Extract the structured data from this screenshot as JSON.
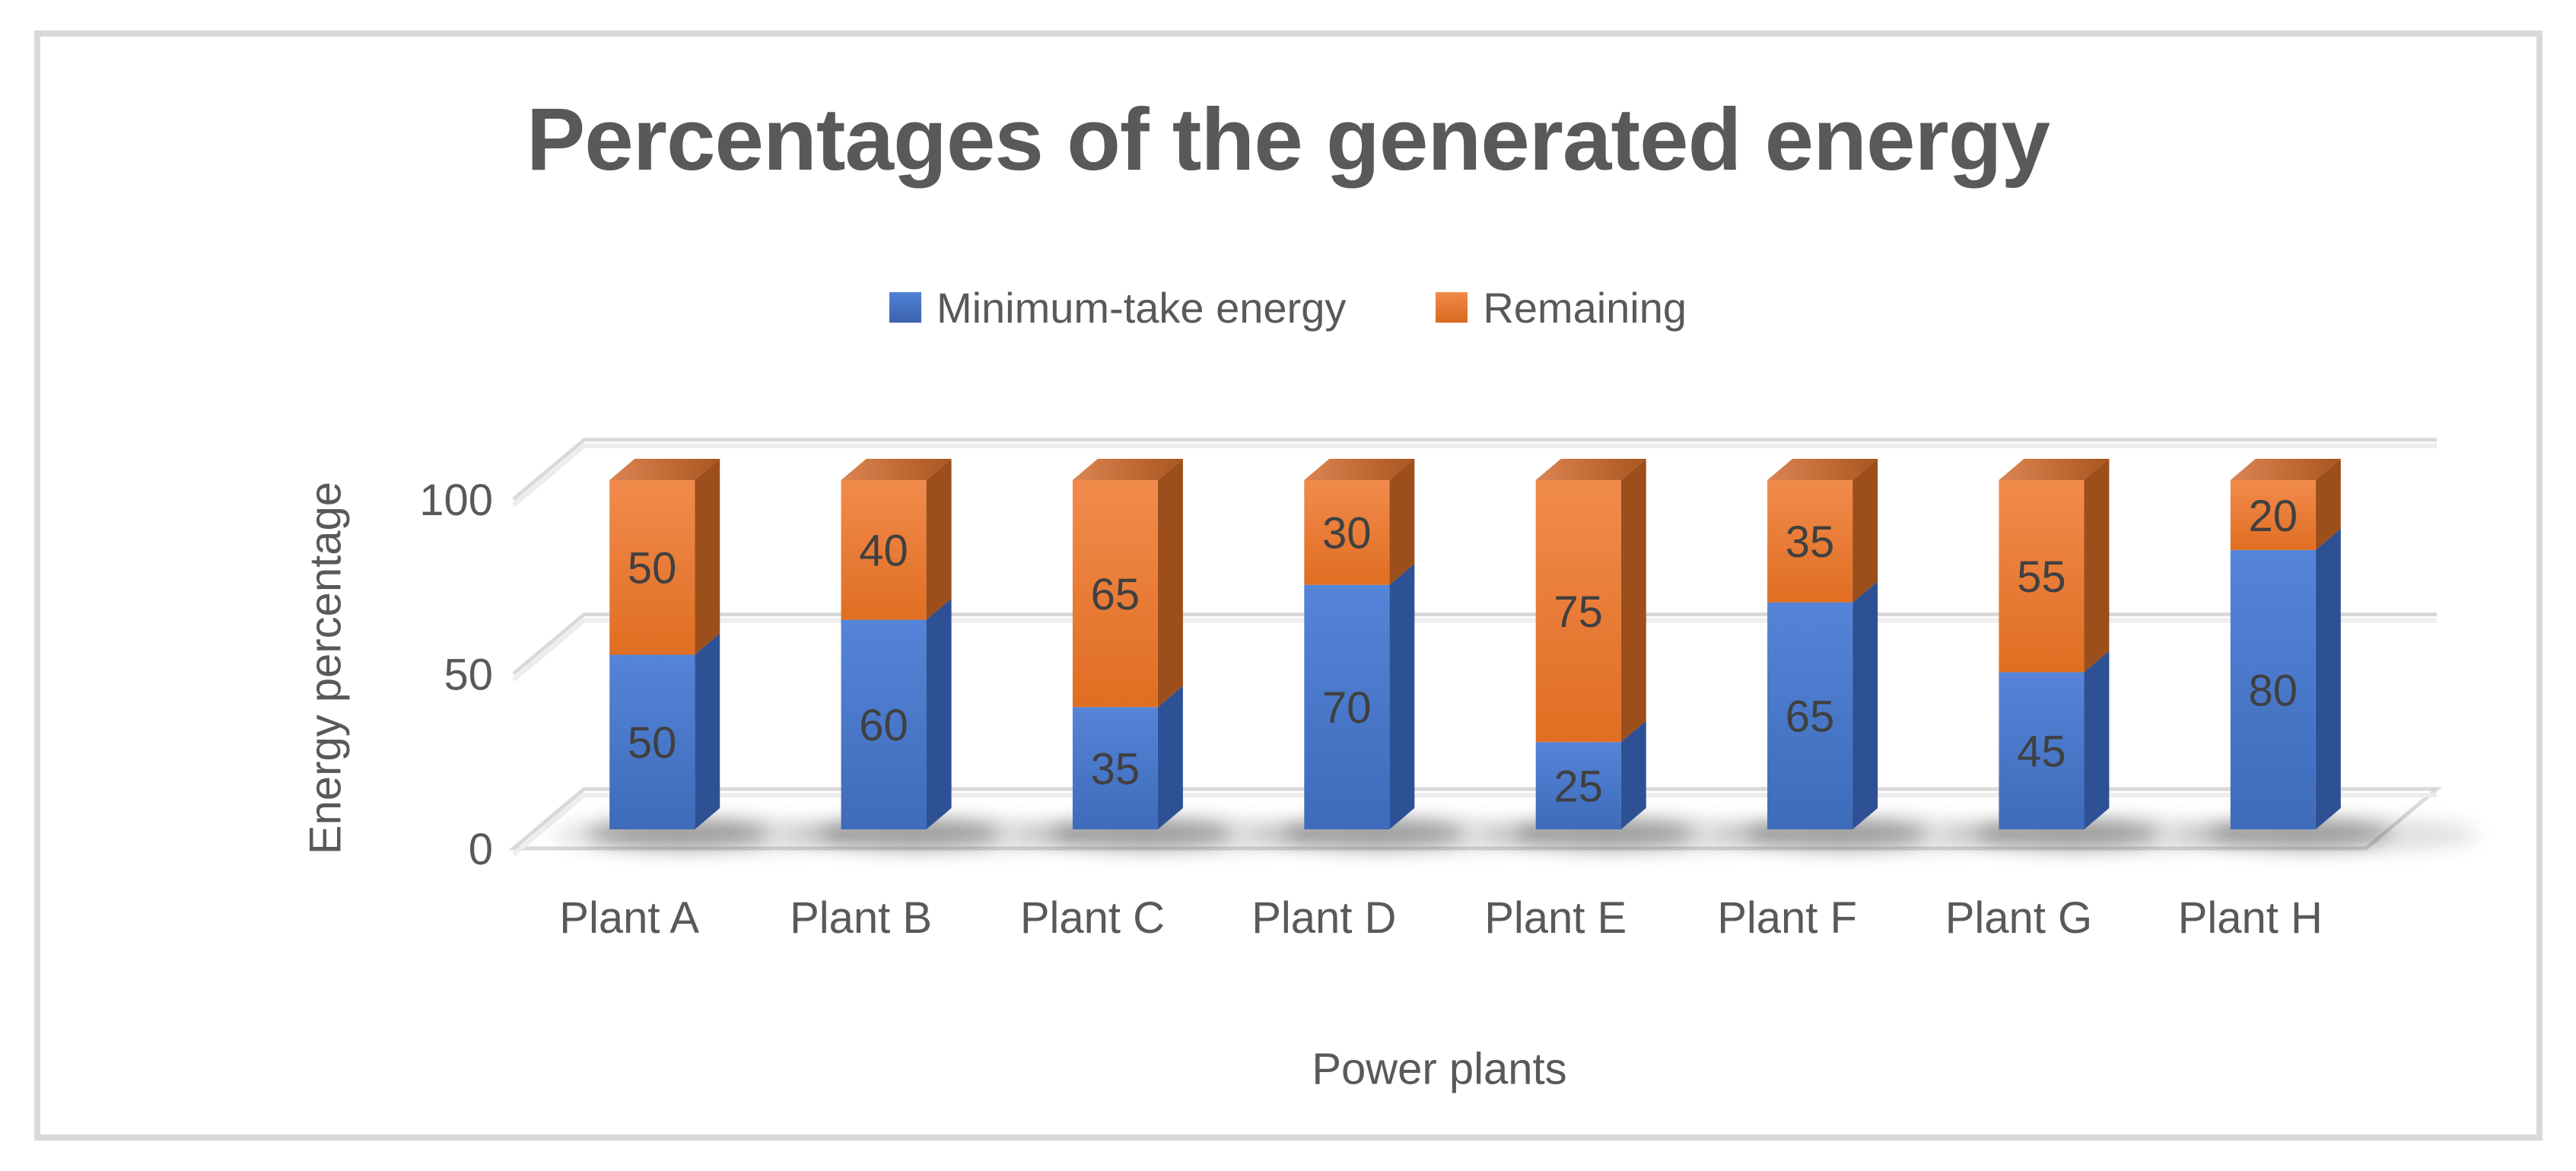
{
  "chart_border_color": "#D9D9D9",
  "chart_data": {
    "type": "bar",
    "variant": "3d-stacked-column",
    "title": "Percentages of the generated energy",
    "xlabel": "Power plants",
    "ylabel": "Energy percentage",
    "categories": [
      "Plant A",
      "Plant B",
      "Plant C",
      "Plant D",
      "Plant E",
      "Plant F",
      "Plant G",
      "Plant H"
    ],
    "series": [
      {
        "name": "Minimum-take energy",
        "color": "#4472C4",
        "values": [
          50,
          60,
          35,
          70,
          25,
          65,
          45,
          80
        ],
        "front_top": "#5584D8",
        "front_bottom": "#3E6BBA",
        "side": "#2E5095",
        "legend_top": "#5081D6",
        "legend_bottom": "#3A63AE"
      },
      {
        "name": "Remaining",
        "color": "#ED7D31",
        "values": [
          50,
          40,
          65,
          30,
          75,
          35,
          55,
          20
        ],
        "front_top": "#F18B4C",
        "front_bottom": "#E06E22",
        "side": "#9C4E1B",
        "top_light": "#DC8452",
        "top_dark": "#A9561F",
        "legend_top": "#F08A45",
        "legend_bottom": "#D96A20"
      }
    ],
    "ylim": [
      0,
      100
    ],
    "yticks": [
      0,
      50,
      100
    ],
    "grid": true,
    "legend_position": "top",
    "data_labels": true,
    "gridline_color": "#D9D9D9",
    "text_colors": {
      "title": "#595959",
      "axis": "#595959",
      "data_label": "#404040"
    }
  }
}
